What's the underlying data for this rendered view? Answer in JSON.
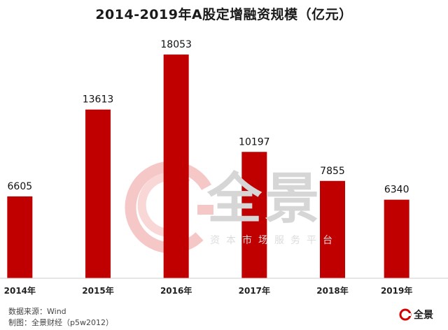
{
  "colors": {
    "bar": "#c00000",
    "watermark": "#f4b8b8",
    "axis": "#cccccc"
  },
  "chart_data": {
    "type": "bar",
    "title": "2014-2019年A股定增融资规模（亿元）",
    "categories": [
      "2014年",
      "2015年",
      "2016年",
      "2017年",
      "2018年",
      "2019年"
    ],
    "values": [
      6605,
      13613,
      18053,
      10197,
      7855,
      6340
    ],
    "ylim": [
      0,
      20000
    ],
    "grid": false,
    "legend": "none"
  },
  "watermark": {
    "brand": "全景",
    "subtitle": "资本市场服务平台"
  },
  "footer": {
    "source": "数据来源：Wind",
    "maker": "制图：全景财经（p5w2012）"
  },
  "logo": {
    "text": "全景"
  }
}
